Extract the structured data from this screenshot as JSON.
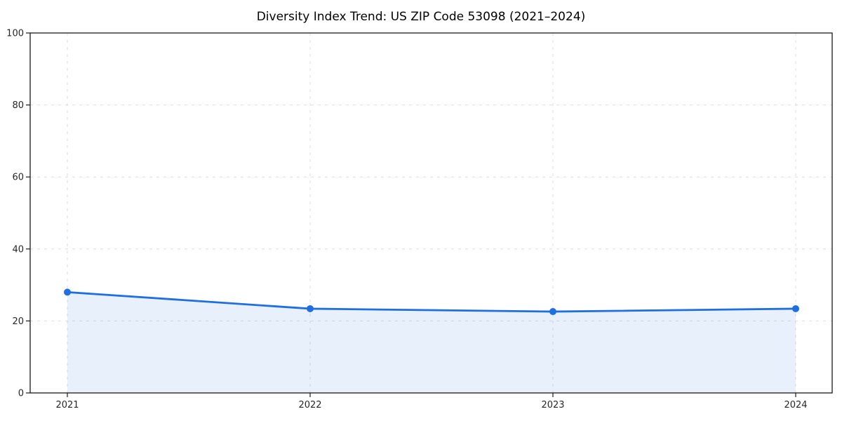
{
  "chart_data": {
    "type": "line",
    "title": "Diversity Index Trend: US ZIP Code 53098 (2021–2024)",
    "x": [
      "2021",
      "2022",
      "2023",
      "2024"
    ],
    "series": [
      {
        "name": "Diversity Index",
        "values": [
          28.0,
          23.4,
          22.6,
          23.4
        ]
      }
    ],
    "xlabel": "",
    "ylabel": "",
    "ylim": [
      0,
      100
    ],
    "yticks": [
      0,
      20,
      40,
      60,
      80,
      100
    ],
    "grid": true,
    "grid_style": "dashed",
    "legend": false,
    "marker": "circle",
    "area_fill": true,
    "colors": {
      "line": "#1f6fe0",
      "marker": "#1f6fe0",
      "area": "rgba(31,111,224,0.10)",
      "grid": "#dedede",
      "spine": "#1a1a1a",
      "tick_label": "#262626",
      "background": "#ffffff"
    }
  }
}
